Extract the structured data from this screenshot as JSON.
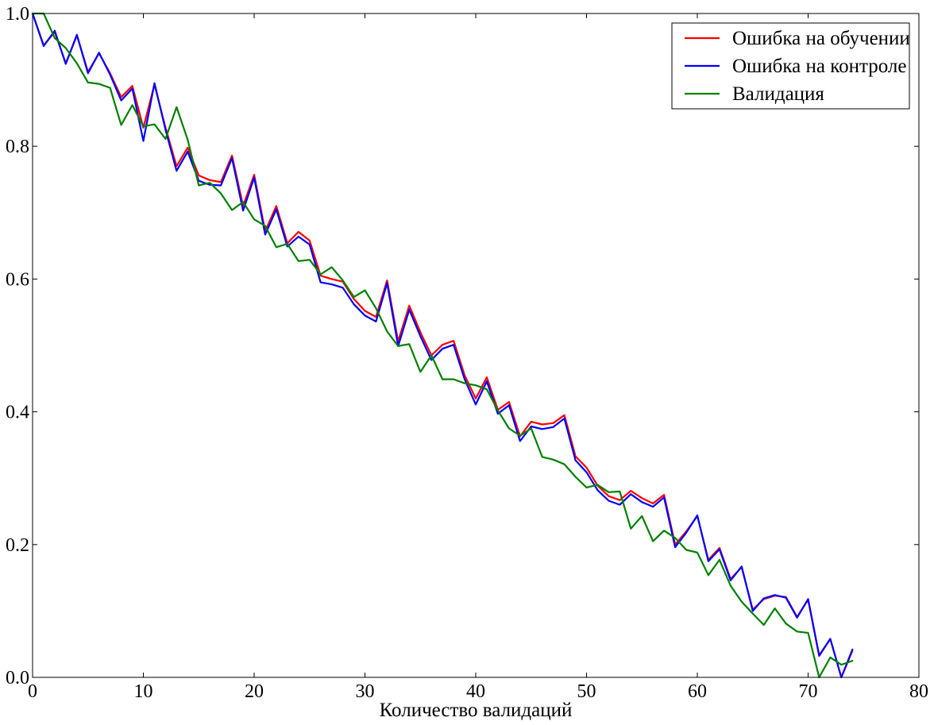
{
  "chart_data": {
    "type": "line",
    "title": "",
    "xlabel": "Количество валидаций",
    "ylabel": "",
    "xlim": [
      0,
      80
    ],
    "ylim": [
      0.0,
      1.0
    ],
    "xticks": [
      0,
      10,
      20,
      30,
      40,
      50,
      60,
      70,
      80
    ],
    "xtick_labels": [
      "0",
      "10",
      "20",
      "30",
      "40",
      "50",
      "60",
      "70",
      "80"
    ],
    "yticks": [
      0.0,
      0.2,
      0.4,
      0.6,
      0.8,
      1.0
    ],
    "ytick_labels": [
      "0.0",
      "0.2",
      "0.4",
      "0.6",
      "0.8",
      "1.0"
    ],
    "grid": false,
    "legend": "top-right",
    "series": [
      {
        "name": "Ошибка на обучении",
        "color": "#ff0000",
        "x": [
          0,
          1,
          2,
          3,
          4,
          5,
          6,
          7,
          8,
          9,
          10,
          11,
          12,
          13,
          14,
          15,
          16,
          17,
          18,
          19,
          20,
          21,
          22,
          23,
          24,
          25,
          26,
          27,
          28,
          29,
          30,
          31,
          32,
          33,
          34,
          35,
          36,
          37,
          38,
          39,
          40,
          41,
          42,
          43,
          44,
          45,
          46,
          47,
          48,
          49,
          50,
          51,
          52,
          53,
          54,
          55,
          56,
          57,
          58,
          59,
          60,
          61,
          62,
          63,
          64,
          65,
          66,
          67,
          68,
          69,
          70,
          71,
          72,
          73,
          74
        ],
        "y": [
          1.0,
          0.952,
          0.972,
          0.925,
          0.967,
          0.912,
          0.94,
          0.91,
          0.874,
          0.891,
          0.828,
          0.893,
          0.828,
          0.77,
          0.798,
          0.756,
          0.749,
          0.746,
          0.786,
          0.71,
          0.757,
          0.672,
          0.71,
          0.654,
          0.671,
          0.658,
          0.605,
          0.6,
          0.596,
          0.57,
          0.552,
          0.543,
          0.598,
          0.506,
          0.56,
          0.52,
          0.485,
          0.501,
          0.507,
          0.455,
          0.42,
          0.452,
          0.403,
          0.415,
          0.363,
          0.385,
          0.381,
          0.383,
          0.395,
          0.333,
          0.316,
          0.289,
          0.273,
          0.267,
          0.281,
          0.27,
          0.262,
          0.275,
          0.2,
          0.22,
          0.243,
          0.177,
          0.195,
          0.148,
          0.166,
          0.102,
          0.118,
          0.123,
          0.121,
          0.091,
          0.117,
          0.032,
          0.058,
          0.0,
          0.04
        ]
      },
      {
        "name": "Ошибка на контроле",
        "color": "#0000ff",
        "x": [
          0,
          1,
          2,
          3,
          4,
          5,
          6,
          7,
          8,
          9,
          10,
          11,
          12,
          13,
          14,
          15,
          16,
          17,
          18,
          19,
          20,
          21,
          22,
          23,
          24,
          25,
          26,
          27,
          28,
          29,
          30,
          31,
          32,
          33,
          34,
          35,
          36,
          37,
          38,
          39,
          40,
          41,
          42,
          43,
          44,
          45,
          46,
          47,
          48,
          49,
          50,
          51,
          52,
          53,
          54,
          55,
          56,
          57,
          58,
          59,
          60,
          61,
          62,
          63,
          64,
          65,
          66,
          67,
          68,
          69,
          70,
          71,
          72,
          73,
          74
        ],
        "y": [
          1.0,
          0.951,
          0.974,
          0.924,
          0.968,
          0.91,
          0.941,
          0.908,
          0.869,
          0.887,
          0.808,
          0.895,
          0.825,
          0.763,
          0.792,
          0.748,
          0.742,
          0.741,
          0.782,
          0.703,
          0.753,
          0.667,
          0.705,
          0.649,
          0.664,
          0.652,
          0.595,
          0.592,
          0.587,
          0.562,
          0.545,
          0.536,
          0.594,
          0.499,
          0.554,
          0.514,
          0.478,
          0.495,
          0.501,
          0.449,
          0.411,
          0.446,
          0.397,
          0.41,
          0.356,
          0.378,
          0.374,
          0.377,
          0.39,
          0.327,
          0.309,
          0.282,
          0.266,
          0.26,
          0.276,
          0.264,
          0.257,
          0.271,
          0.196,
          0.218,
          0.244,
          0.175,
          0.193,
          0.146,
          0.167,
          0.1,
          0.119,
          0.124,
          0.12,
          0.09,
          0.118,
          0.033,
          0.058,
          0.0,
          0.042
        ]
      },
      {
        "name": "Валидация",
        "color": "#008000",
        "x": [
          0,
          1,
          2,
          3,
          4,
          5,
          6,
          7,
          8,
          9,
          10,
          11,
          12,
          13,
          14,
          15,
          16,
          17,
          18,
          19,
          20,
          21,
          22,
          23,
          24,
          25,
          26,
          27,
          28,
          29,
          30,
          31,
          32,
          33,
          34,
          35,
          36,
          37,
          38,
          39,
          40,
          41,
          42,
          43,
          44,
          45,
          46,
          47,
          48,
          49,
          50,
          51,
          52,
          53,
          54,
          55,
          56,
          57,
          58,
          59,
          60,
          61,
          62,
          63,
          64,
          65,
          66,
          67,
          68,
          69,
          70,
          71,
          72,
          73,
          74
        ],
        "y": [
          1.0,
          1.0,
          0.963,
          0.948,
          0.925,
          0.896,
          0.894,
          0.888,
          0.832,
          0.862,
          0.83,
          0.833,
          0.811,
          0.859,
          0.81,
          0.741,
          0.745,
          0.729,
          0.704,
          0.716,
          0.69,
          0.68,
          0.648,
          0.653,
          0.627,
          0.629,
          0.607,
          0.618,
          0.598,
          0.573,
          0.583,
          0.556,
          0.521,
          0.499,
          0.502,
          0.46,
          0.485,
          0.449,
          0.449,
          0.443,
          0.44,
          0.434,
          0.402,
          0.375,
          0.364,
          0.375,
          0.332,
          0.328,
          0.321,
          0.302,
          0.286,
          0.29,
          0.279,
          0.28,
          0.224,
          0.243,
          0.205,
          0.221,
          0.21,
          0.192,
          0.188,
          0.154,
          0.177,
          0.138,
          0.114,
          0.096,
          0.079,
          0.104,
          0.081,
          0.069,
          0.067,
          0.0,
          0.03,
          0.019,
          0.025
        ]
      }
    ]
  }
}
